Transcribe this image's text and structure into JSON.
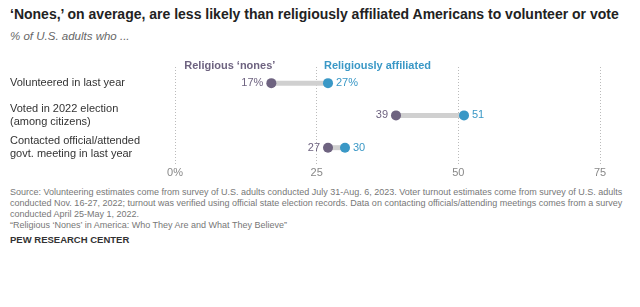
{
  "chart_data": {
    "type": "dumbbell",
    "title": "‘Nones,’ on average, are less likely than religiously affiliated Americans to volunteer or vote",
    "subtitle": "% of U.S. adults who ...",
    "orientation": "horizontal",
    "categories": [
      "Volunteered in last year",
      "Voted in 2022 election\n(among citizens)",
      "Contacted official/attended\ngovt. meeting in last year"
    ],
    "series": [
      {
        "name": "Religious ‘nones’",
        "color": "#6e6380",
        "values": [
          17,
          39,
          27
        ],
        "value_labels": [
          "17%",
          "39",
          "27"
        ]
      },
      {
        "name": "Religiously affiliated",
        "color": "#3a98c6",
        "values": [
          27,
          51,
          30
        ],
        "value_labels": [
          "27%",
          "51",
          "30"
        ]
      }
    ],
    "xlim": [
      0,
      75
    ],
    "xticks": [
      {
        "value": 0,
        "label": "0%"
      },
      25,
      50,
      75
    ],
    "grid": true,
    "legend": "top",
    "data_labels": true,
    "marker": "circle",
    "source": "Source: Volunteering estimates come from survey of U.S. adults conducted July 31-Aug. 6, 2023. Voter turnout estimates come from survey of U.S. adults conducted Nov. 16-27, 2022; turnout was verified using official state election records. Data on contacting officials/attending meetings comes from a survey conducted April 25-May 1, 2022.",
    "citation": "“Religious ‘Nones’ in America: Who They Are and What They Believe”",
    "credit": "PEW RESEARCH CENTER"
  }
}
